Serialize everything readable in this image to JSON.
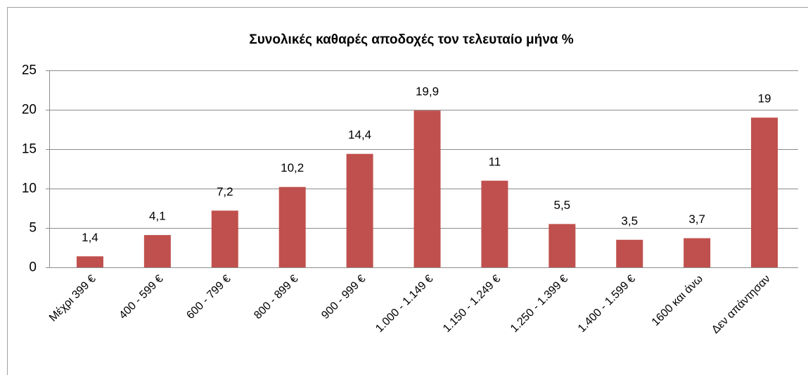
{
  "chart_data": {
    "type": "bar",
    "title": "Συνολικές καθαρές αποδοχές τον τελευταίο μήνα  %",
    "categories": [
      "Μέχρι 399 €",
      "400 - 599 €",
      "600 - 799 €",
      "800 - 899 €",
      "900 - 999 €",
      "1.000 - 1.149 €",
      "1.150 - 1.249 €",
      "1.250 - 1.399 €",
      "1.400 - 1.599 €",
      "1600 και άνω",
      "Δεν απάντησαν"
    ],
    "values": [
      1.4,
      4.1,
      7.2,
      10.2,
      14.4,
      19.9,
      11,
      5.5,
      3.5,
      3.7,
      19
    ],
    "value_labels": [
      "1,4",
      "4,1",
      "7,2",
      "10,2",
      "14,4",
      "19,9",
      "11",
      "5,5",
      "3,5",
      "3,7",
      "19"
    ],
    "color": "#c0504d",
    "ylim": [
      0,
      25
    ],
    "yticks": [
      0,
      5,
      10,
      15,
      20,
      25
    ],
    "grid": true
  }
}
